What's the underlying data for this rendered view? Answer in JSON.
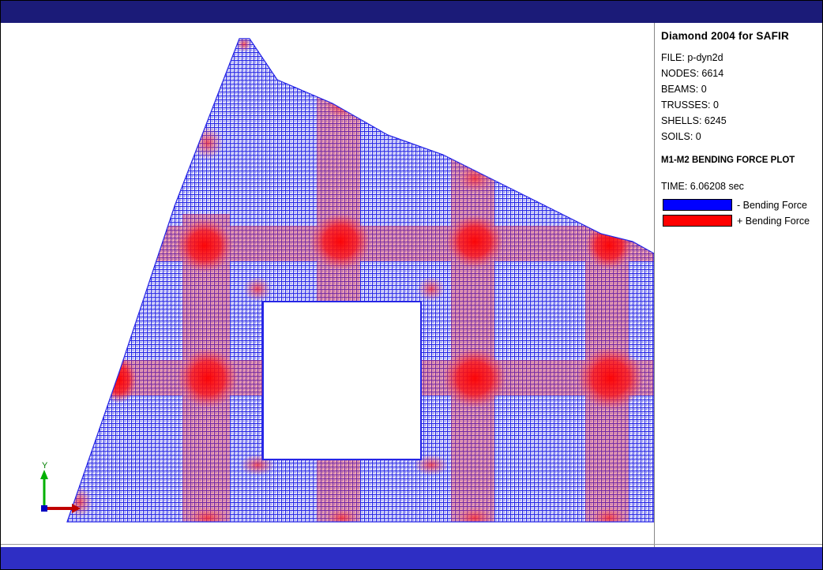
{
  "colors": {
    "top_bar": "#1b1b78",
    "bottom_bar": "#2e2ec4",
    "negative": "#0000ff",
    "positive": "#ff0000"
  },
  "info_panel": {
    "title": "Diamond 2004 for SAFIR",
    "file": "FILE: p-dyn2d",
    "nodes": "NODES: 6614",
    "beams": "BEAMS: 0",
    "trusses": "TRUSSES: 0",
    "shells": "SHELLS: 6245",
    "soils": "SOILS: 0",
    "plot_title": "M1-M2 BENDING FORCE PLOT",
    "time": "TIME: 6.06208 sec"
  },
  "legend": [
    {
      "label": "- Bending Force",
      "color": "#0000ff"
    },
    {
      "label": "+ Bending Force",
      "color": "#ff0000"
    }
  ],
  "axes": {
    "y_label": "Y",
    "icon": "xyz-axes-icon"
  }
}
